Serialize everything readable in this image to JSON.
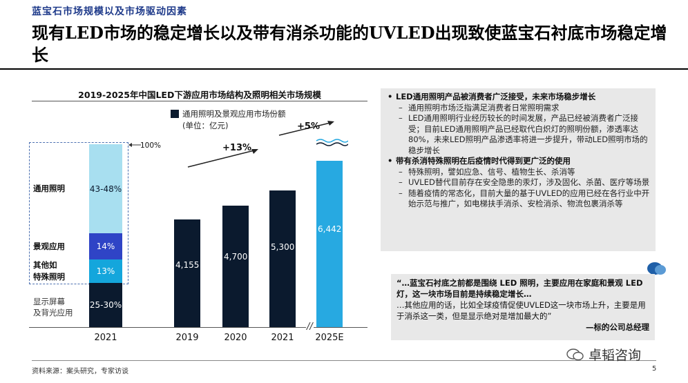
{
  "header": {
    "subtitle": "蓝宝石市场规模以及市场驱动因素",
    "title": "现有LED市场的稳定增长以及带有消杀功能的UVLED出现致使蓝宝石衬底市场稳定增长"
  },
  "chart": {
    "title": "2019-2025年中国LED下游应用市场结构及照明相关市场规模",
    "legend_label": "通用照明及景观应用市场份额",
    "legend_unit": "(单位：亿元)",
    "pct100": "100%",
    "growth1": "+13%",
    "growth2": "+5%",
    "stack_year": "2021",
    "axis_break": "//"
  },
  "chart_data": [
    {
      "type": "bar",
      "stacked": true,
      "categories": [
        "2021"
      ],
      "segments": [
        {
          "name": "通用照明",
          "label": "43-48%",
          "color": "#a8dff0"
        },
        {
          "name": "景观应用",
          "label": "14%",
          "color": "#2f44c6"
        },
        {
          "name": "其他如特殊照明",
          "label": "13%",
          "color": "#14a6dc"
        },
        {
          "name": "显示屏幕及背光应用",
          "label": "25-30%",
          "color": "#0b1a2e"
        }
      ]
    },
    {
      "type": "bar",
      "categories": [
        "2019",
        "2020",
        "2021",
        "2025E"
      ],
      "values": [
        4155,
        4700,
        5300,
        6442
      ],
      "value_labels": [
        "4,155",
        "4,700",
        "5,300",
        "6,442"
      ],
      "colors": [
        "#0b1a2e",
        "#0b1a2e",
        "#0b1a2e",
        "#27a9e1"
      ],
      "ylim": [
        0,
        7000
      ]
    }
  ],
  "stack_labels": {
    "general": "通用照明",
    "landscape": "景观应用",
    "special_1": "其他如",
    "special_2": "特殊照明",
    "display_1": "显示屏幕",
    "display_2": "及背光应用"
  },
  "panel": {
    "b1": "LED通用照明产品被消费者广泛接受，未来市场稳步增长",
    "b1_s1": "通用照明市场泛指满足消费者日常照明需求",
    "b1_s2": "LED通用照明行业经历较长的时间发展，产品已经被消费者广泛接受；目前LED通用照明产品已经取代白炽灯的照明份额，渗透率达80%，未来LED照明产品渗透率将进一步提升，带动LED照明市场的稳步增长",
    "b2": "带有杀消特殊照明在后疫情时代得到更广泛的使用",
    "b2_s1": "特殊照明，譬如应急、信号、植物生长、杀消等",
    "b2_s2": "UVLED替代目前存在安全隐患的汞灯，涉及固化、杀菌、医疗等场景",
    "b2_s3": "随着疫情的常态化，目前大量的基于UVLED的应用已经在各行业中开始示范与推广，如电梯扶手消杀、安检消杀、物流包裹消杀等"
  },
  "quote": {
    "line1": "“…蓝宝石衬底之前都是围绕 LED 照明，主要应用在家庭和景观 LED 灯，这一块市场目前是持续稳定增长…",
    "line2": "…其他应用的话，比如全球疫情促使UVLED这一块市场上升，主要是用于消杀这一类，但是显示绝对是增加最大的”",
    "attribution": "—标的公司总经理"
  },
  "footer": {
    "source": "资料来源：案头研究，专家访谈",
    "page": "5",
    "watermark": "卓韬咨询"
  }
}
